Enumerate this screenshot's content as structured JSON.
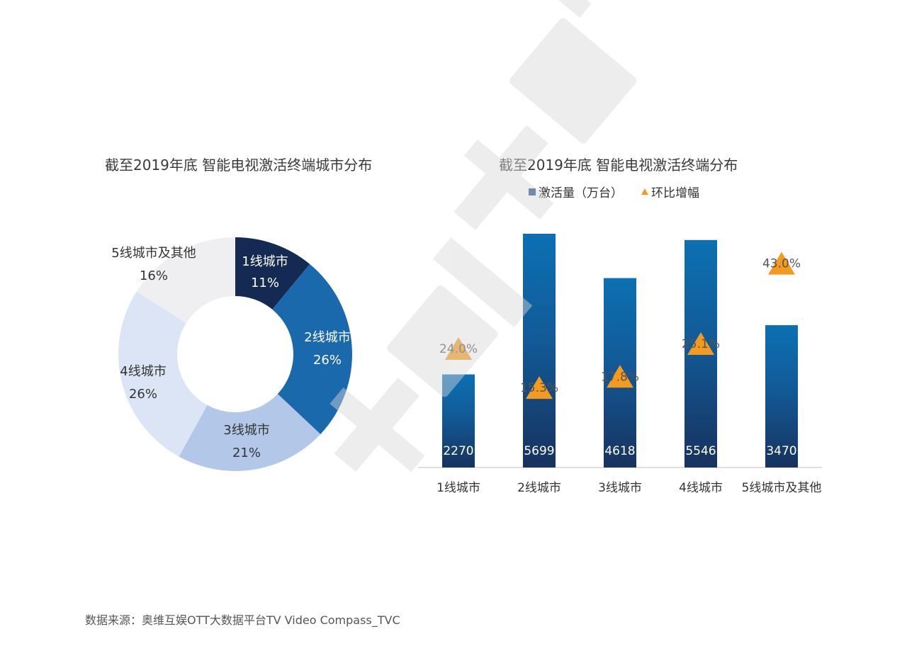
{
  "chart_data": [
    {
      "type": "pie",
      "title": "截至2019年底 智能电视激活终端城市分布",
      "slices": [
        {
          "label": "1线城市",
          "value": 11,
          "display": "11%",
          "color": "#142a52"
        },
        {
          "label": "2线城市",
          "value": 26,
          "display": "26%",
          "color": "#1b69ad"
        },
        {
          "label": "3线城市",
          "value": 21,
          "display": "21%",
          "color": "#b3c7e8"
        },
        {
          "label": "4线城市",
          "value": 26,
          "display": "26%",
          "color": "#dce5f5"
        },
        {
          "label": "5线城市及其他",
          "value": 16,
          "display": "16%",
          "color": "#efeff1"
        }
      ]
    },
    {
      "type": "bar",
      "title": "截至2019年底 智能电视激活终端分布",
      "categories": [
        "1线城市",
        "2线城市",
        "3线城市",
        "4线城市",
        "5线城市及其他"
      ],
      "series": [
        {
          "name": "激活量（万台）",
          "values": [
            2270,
            5699,
            4618,
            5546,
            3470
          ]
        },
        {
          "name": "环比增幅",
          "values": [
            24.0,
            15.3,
            17.8,
            25.1,
            43.0
          ],
          "display": [
            "24.0%",
            "15.3%",
            "17.8%",
            "25.1%",
            "43.0%"
          ]
        }
      ],
      "legend": "top"
    }
  ],
  "source": "数据来源：奥维互娱OTT大数据平台TV Video Compass_TVC",
  "colors": {
    "bar_top": "#0c70b3",
    "bar_bottom": "#17325e",
    "marker": "#f39a1f",
    "watermark": "#e3e3e3"
  }
}
